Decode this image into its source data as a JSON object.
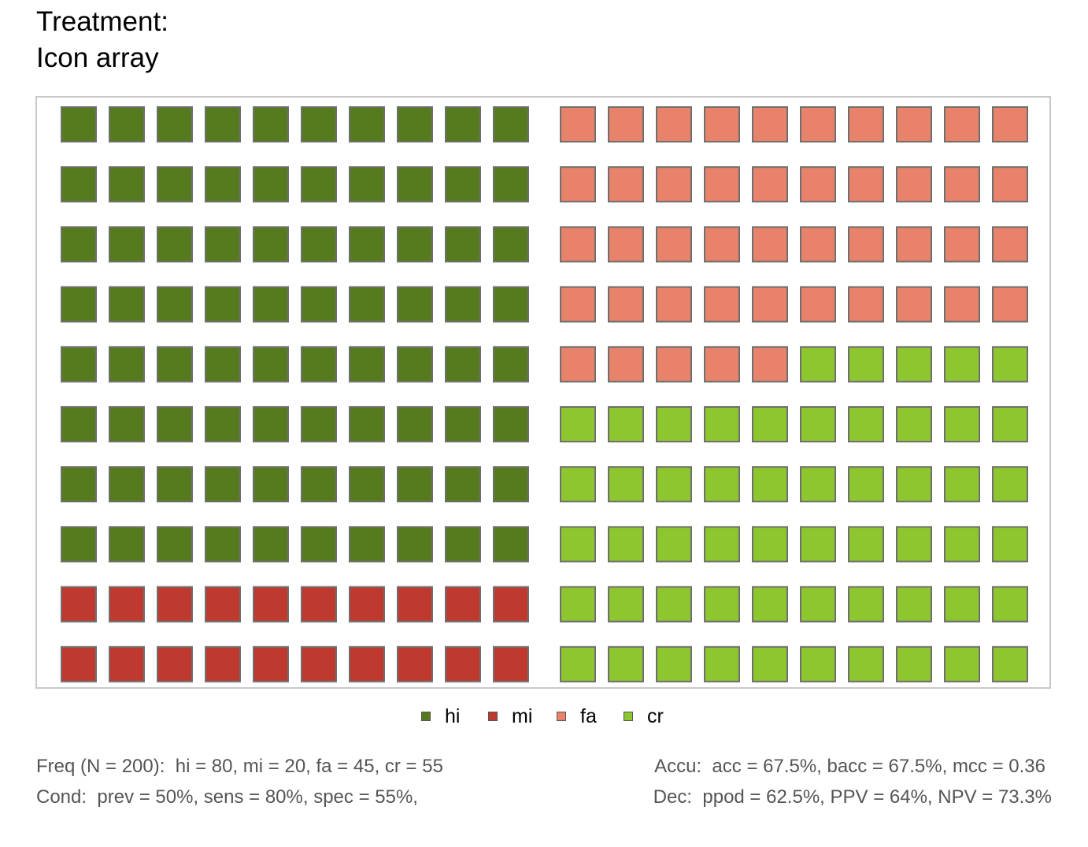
{
  "title": {
    "line1": "Treatment:",
    "line2": "Icon array"
  },
  "chart_data": {
    "type": "icon-array",
    "grid": {
      "rows": 10,
      "cols": 20,
      "split": "two blocks of 10 columns"
    },
    "categories": [
      "hi",
      "mi",
      "fa",
      "cr"
    ],
    "counts": {
      "hi": 80,
      "mi": 20,
      "fa": 45,
      "cr": 55
    },
    "colors": {
      "hi": "#567b1e",
      "mi": "#c0392f",
      "fa": "#e8826a",
      "cr": "#8dc62e",
      "icon_border": "#6f6f6f",
      "panel_border": "#c8c8c8"
    },
    "legend": {
      "placement": "bottom-center",
      "items": [
        {
          "key": "hi",
          "label": "hi"
        },
        {
          "key": "mi",
          "label": "mi"
        },
        {
          "key": "fa",
          "label": "fa"
        },
        {
          "key": "cr",
          "label": "cr"
        }
      ]
    }
  },
  "footer": {
    "freq": "Freq (N = 200):  hi = 80, mi = 20, fa = 45, cr = 55",
    "cond": "Cond:  prev = 50%, sens = 80%, spec = 55%,",
    "accu": "Accu:  acc = 67.5%, bacc = 67.5%, mcc = 0.36",
    "dec": "Dec:  ppod = 62.5%, PPV = 64%, NPV = 73.3%"
  }
}
